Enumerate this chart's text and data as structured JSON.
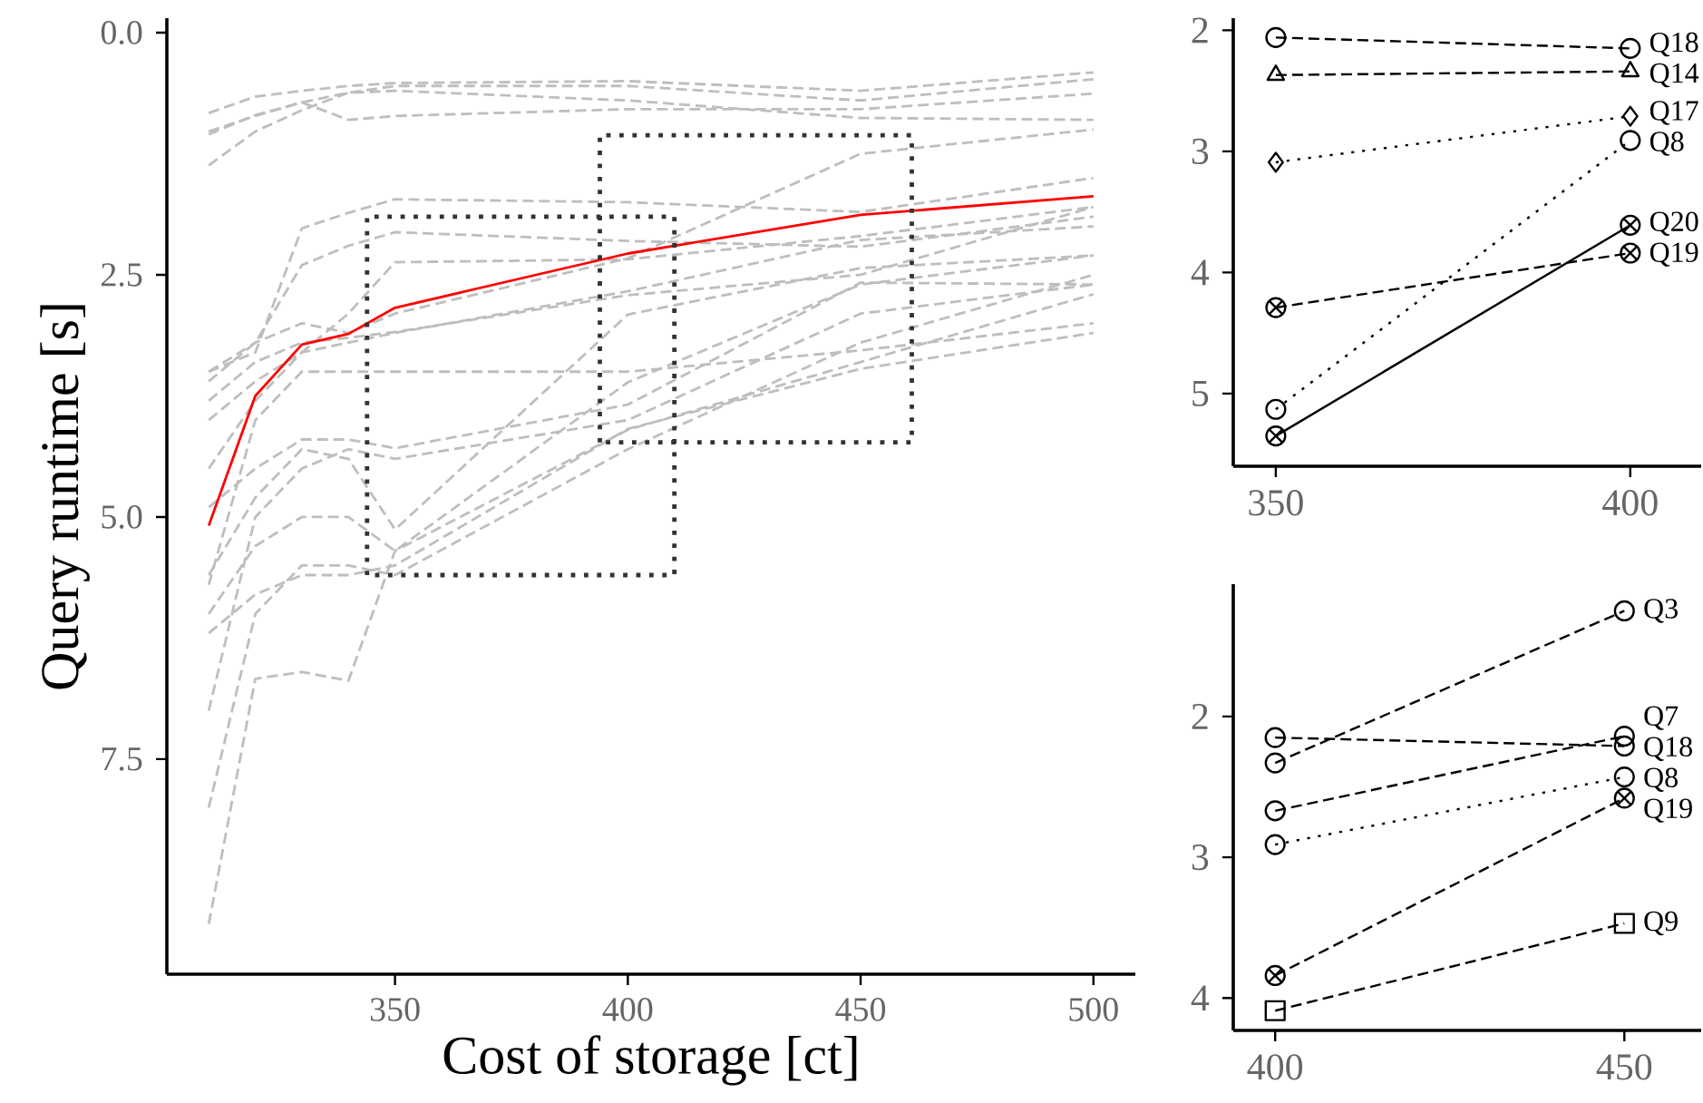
{
  "chart_data": [
    {
      "type": "line",
      "xlabel": "Cost of storage [ct]",
      "ylabel": "Query runtime [s]",
      "x": [
        310,
        320,
        330,
        340,
        350,
        400,
        450,
        500
      ],
      "xlim": [
        301,
        509
      ],
      "ylim": [
        9.72,
        -0.15
      ],
      "xticks": [
        350,
        400,
        450,
        500
      ],
      "yticks": [
        {
          "value": 0,
          "label": "0.0"
        },
        {
          "value": 2.5,
          "label": "2.5"
        },
        {
          "value": 5,
          "label": "5.0"
        },
        {
          "value": 7.5,
          "label": "7.5"
        }
      ],
      "series": [
        {
          "color": "#bebebe",
          "line_style": "dashed",
          "values": [
            0.83,
            0.66,
            0.6,
            0.55,
            0.52,
            0.5,
            0.6,
            0.41
          ]
        },
        {
          "color": "#bebebe",
          "line_style": "dashed",
          "values": [
            1.02,
            0.86,
            0.72,
            0.62,
            0.55,
            0.55,
            0.7,
            0.48
          ]
        },
        {
          "color": "#bebebe",
          "line_style": "dashed",
          "values": [
            1.05,
            0.85,
            0.72,
            0.9,
            0.86,
            0.79,
            0.79,
            0.63
          ]
        },
        {
          "color": "#bebebe",
          "line_style": "dashed",
          "values": [
            1.37,
            1.02,
            0.8,
            0.62,
            0.6,
            0.7,
            0.88,
            0.9
          ]
        },
        {
          "color": "#bebebe",
          "line_style": "dashed",
          "values": [
            3.5,
            3.2,
            3.0,
            3.1,
            2.9,
            2.33,
            1.25,
            1.0
          ]
        },
        {
          "color": "#bebebe",
          "line_style": "dashed",
          "values": [
            3.5,
            3.3,
            2.02,
            1.86,
            1.72,
            1.75,
            1.85,
            1.5
          ]
        },
        {
          "color": "#bebebe",
          "line_style": "dashed",
          "values": [
            3.6,
            3.2,
            2.4,
            2.2,
            2.06,
            2.15,
            2.21,
            1.9
          ]
        },
        {
          "color": "#bebebe",
          "line_style": "dashed",
          "values": [
            4.0,
            3.6,
            3.3,
            2.9,
            2.37,
            2.34,
            2.1,
            1.8
          ]
        },
        {
          "color": "#bebebe",
          "line_style": "dashed",
          "values": [
            3.8,
            3.4,
            3.2,
            3.15,
            3.09,
            2.71,
            2.5,
            1.8
          ]
        },
        {
          "color": "#bebebe",
          "line_style": "dashed",
          "values": [
            5.6,
            4.8,
            4.3,
            4.4,
            5.13,
            2.91,
            2.43,
            2.3
          ]
        },
        {
          "color": "#bebebe",
          "line_style": "dashed",
          "values": [
            6.0,
            5.3,
            5.0,
            5.0,
            5.35,
            3.61,
            2.6,
            2.3
          ]
        },
        {
          "color": "#bebebe",
          "line_style": "dashed",
          "values": [
            4.9,
            4.5,
            4.2,
            4.2,
            4.29,
            3.84,
            2.58,
            2.6
          ]
        },
        {
          "color": "#bebebe",
          "line_style": "dashed",
          "values": [
            4.5,
            3.8,
            3.3,
            3.2,
            3.1,
            2.67,
            2.14,
            2.0
          ]
        },
        {
          "color": "#bebebe",
          "line_style": "dashed",
          "values": [
            6.2,
            5.8,
            5.6,
            5.6,
            5.5,
            4.09,
            3.47,
            3.1
          ]
        },
        {
          "color": "#bebebe",
          "line_style": "dashed",
          "values": [
            5.7,
            4.0,
            3.5,
            3.5,
            3.5,
            3.5,
            3.28,
            3.0
          ]
        },
        {
          "color": "#bebebe",
          "line_style": "dashed",
          "values": [
            9.2,
            6.67,
            6.6,
            6.69,
            5.35,
            4.1,
            3.4,
            2.7
          ]
        },
        {
          "color": "#bebebe",
          "line_style": "dashed",
          "values": [
            8.0,
            6.0,
            5.5,
            5.5,
            5.6,
            4.3,
            3.2,
            2.5
          ]
        },
        {
          "color": "#bebebe",
          "line_style": "dashed",
          "values": [
            7.0,
            5.0,
            4.5,
            4.3,
            4.4,
            4.0,
            2.9,
            2.6
          ]
        },
        {
          "color": "#ff0000",
          "line_style": "solid",
          "values": [
            5.09,
            3.75,
            3.22,
            3.11,
            2.84,
            2.28,
            1.88,
            1.69
          ]
        }
      ]
    },
    {
      "type": "line",
      "x": [
        350,
        400
      ],
      "xlim": [
        344,
        410
      ],
      "ylim": [
        5.6,
        1.9
      ],
      "xticks": [
        350,
        400
      ],
      "yticks": [
        2,
        3,
        4,
        5
      ],
      "series": [
        {
          "name": "Q18",
          "color": "#000000",
          "marker": "circle",
          "line_style": "dashed",
          "values": [
            2.06,
            2.15
          ]
        },
        {
          "name": "Q14",
          "color": "#000000",
          "marker": "triangle",
          "line_style": "dashed",
          "values": [
            2.37,
            2.34
          ]
        },
        {
          "name": "Q17",
          "color": "#000000",
          "marker": "diamond",
          "line_style": "dotted",
          "values": [
            3.09,
            2.71
          ]
        },
        {
          "name": "Q8",
          "color": "#000000",
          "marker": "circle",
          "line_style": "dotted",
          "values": [
            5.13,
            2.91
          ]
        },
        {
          "name": "Q20",
          "color": "#000000",
          "marker": "cross",
          "line_style": "solid",
          "values": [
            5.35,
            3.61
          ]
        },
        {
          "name": "Q19",
          "color": "#000000",
          "marker": "cross",
          "line_style": "dashed",
          "values": [
            4.29,
            3.84
          ]
        }
      ]
    },
    {
      "type": "line",
      "x": [
        400,
        450
      ],
      "xlim": [
        394,
        461
      ],
      "ylim": [
        4.23,
        1.06
      ],
      "xticks": [
        400,
        450
      ],
      "yticks": [
        2,
        3,
        4
      ],
      "series": [
        {
          "name": "Q3",
          "color": "#000000",
          "marker": "circle",
          "line_style": "dashed",
          "values": [
            2.33,
            1.25
          ]
        },
        {
          "name": "Q7",
          "color": "#000000",
          "marker": "circle",
          "line_style": "dashed",
          "values": [
            2.67,
            2.14
          ]
        },
        {
          "name": "Q18",
          "color": "#000000",
          "marker": "circle",
          "line_style": "dashed",
          "values": [
            2.15,
            2.21
          ]
        },
        {
          "name": "Q8",
          "color": "#000000",
          "marker": "circle",
          "line_style": "dotted",
          "values": [
            2.91,
            2.43
          ]
        },
        {
          "name": "Q19",
          "color": "#000000",
          "marker": "cross",
          "line_style": "dashed",
          "values": [
            3.84,
            2.58
          ]
        },
        {
          "name": "Q9",
          "color": "#000000",
          "marker": "square",
          "line_style": "dashed",
          "values": [
            4.09,
            3.47
          ]
        }
      ]
    }
  ]
}
